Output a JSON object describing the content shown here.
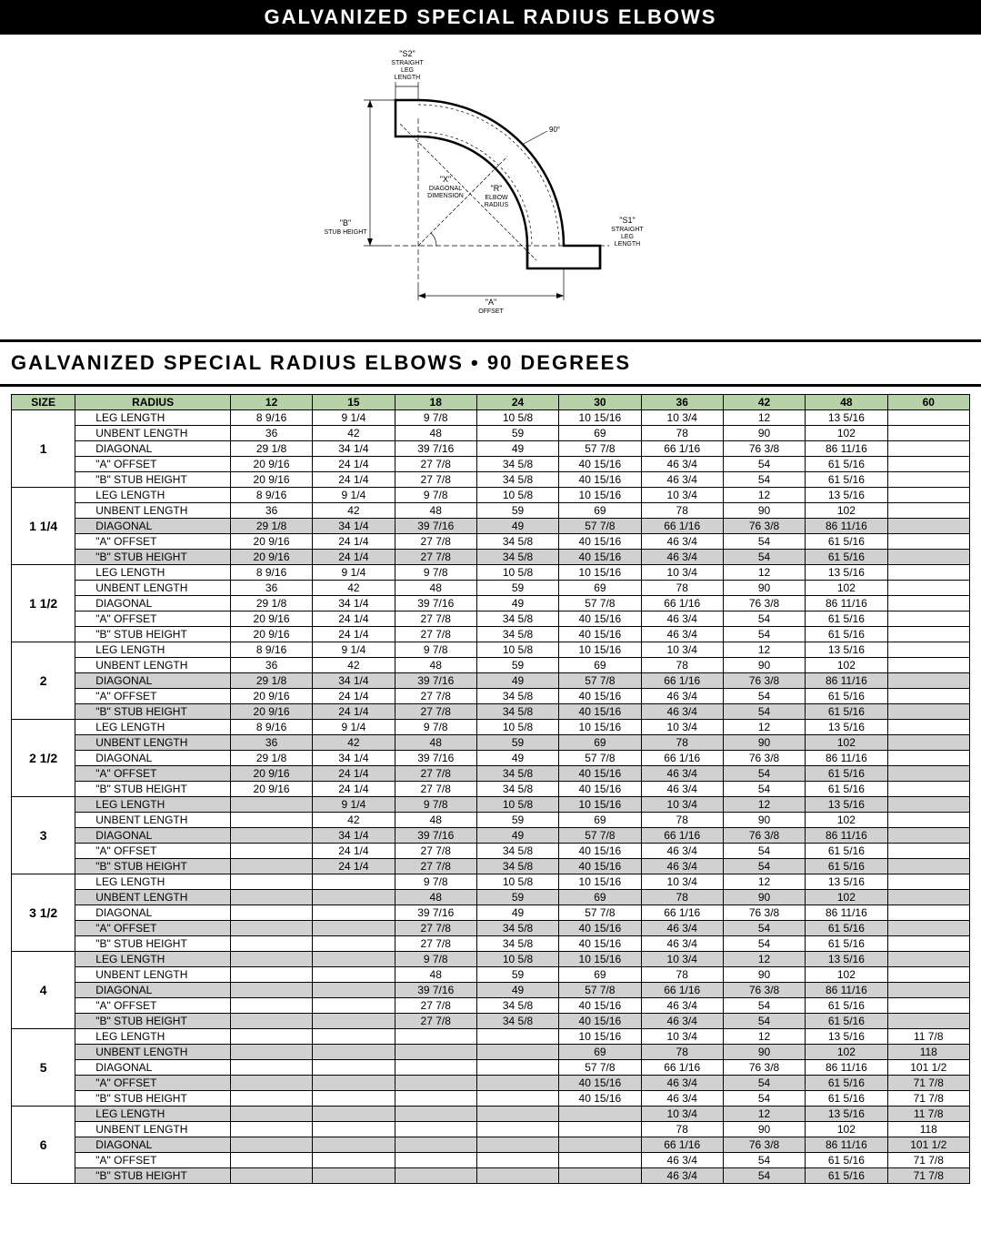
{
  "header": {
    "black_bar": "GALVANIZED SPECIAL RADIUS ELBOWS",
    "section_title": "GALVANIZED SPECIAL RADIUS ELBOWS • 90 DEGREES"
  },
  "diagram": {
    "labels": {
      "s2": "\"S2\"",
      "s2_sub": "STRAIGHT\nLEG\nLENGTH",
      "x": "\"X\"",
      "x_sub": "DIAGONAL\nDIMENSION",
      "b": "\"B\"",
      "b_sub": "STUB HEIGHT",
      "r": "\"R\"",
      "r_sub": "ELBOW\nRADIUS",
      "s1": "\"S1\"",
      "s1_sub": "STRAIGHT\nLEG\nLENGTH",
      "a": "\"A\"",
      "a_sub": "OFFSET",
      "ninety": "90°"
    }
  },
  "table": {
    "header": {
      "size": "SIZE",
      "radius": "RADIUS",
      "cols": [
        "12",
        "15",
        "18",
        "24",
        "30",
        "36",
        "42",
        "48",
        "60"
      ]
    },
    "row_labels": [
      "LEG LENGTH",
      "UNBENT LENGTH",
      "DIAGONAL",
      "\"A\" OFFSET",
      "\"B\" STUB HEIGHT"
    ],
    "repeating_values": {
      "LEG LENGTH": [
        "8 9/16",
        "9 1/4",
        "9 7/8",
        "10 5/8",
        "10 15/16",
        "10 3/4",
        "12",
        "13 5/16",
        "11 7/8"
      ],
      "UNBENT LENGTH": [
        "36",
        "42",
        "48",
        "59",
        "69",
        "78",
        "90",
        "102",
        "118"
      ],
      "DIAGONAL": [
        "29 1/8",
        "34 1/4",
        "39 7/16",
        "49",
        "57 7/8",
        "66 1/16",
        "76 3/8",
        "86 11/16",
        "101 1/2"
      ],
      "\"A\" OFFSET": [
        "20 9/16",
        "24 1/4",
        "27 7/8",
        "34 5/8",
        "40 15/16",
        "46 3/4",
        "54",
        "61 5/16",
        "71 7/8"
      ],
      "\"B\" STUB HEIGHT": [
        "20 9/16",
        "24 1/4",
        "27 7/8",
        "34 5/8",
        "40 15/16",
        "46 3/4",
        "54",
        "61 5/16",
        "71 7/8"
      ]
    },
    "sizes": [
      {
        "size": "1",
        "start": 0,
        "end": 7
      },
      {
        "size": "1 1/4",
        "start": 0,
        "end": 7
      },
      {
        "size": "1 1/2",
        "start": 0,
        "end": 7
      },
      {
        "size": "2",
        "start": 0,
        "end": 7
      },
      {
        "size": "2 1/2",
        "start": 0,
        "end": 7
      },
      {
        "size": "3",
        "start": 1,
        "end": 7
      },
      {
        "size": "3 1/2",
        "start": 2,
        "end": 7
      },
      {
        "size": "4",
        "start": 2,
        "end": 7
      },
      {
        "size": "5",
        "start": 4,
        "end": 8
      },
      {
        "size": "6",
        "start": 5,
        "end": 8
      }
    ],
    "shaded_groups": [
      1,
      3,
      4,
      6,
      8
    ],
    "shaded_rows": [
      1,
      2,
      4
    ]
  },
  "colors": {
    "header_bg": "#b7d1a8",
    "shade_bg": "#d1d1d1",
    "border": "#000000",
    "page_bg": "#ffffff"
  }
}
